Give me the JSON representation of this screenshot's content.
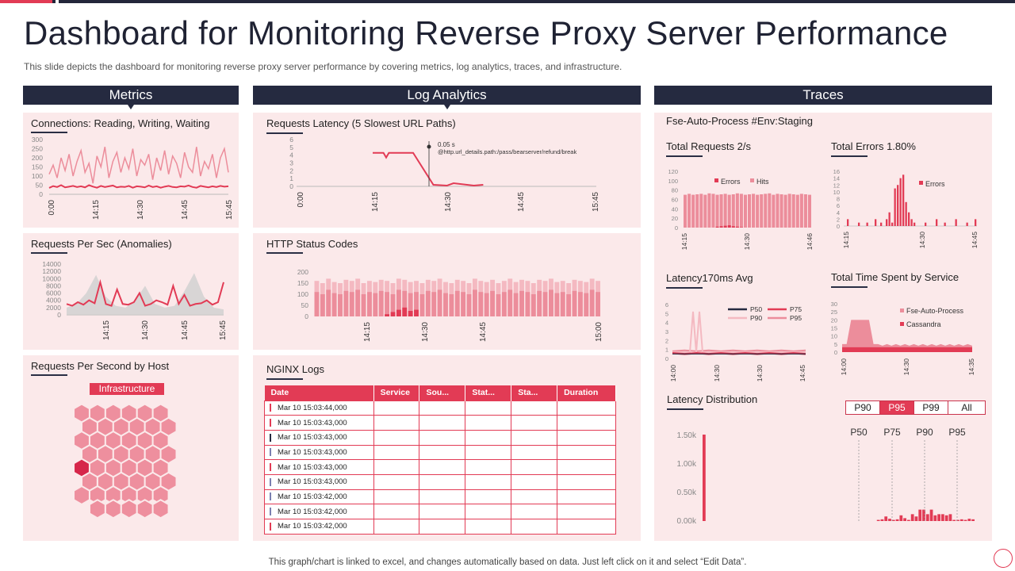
{
  "title": "Dashboard for Monitoring Reverse Proxy Server Performance",
  "subtitle": "This slide depicts the dashboard for monitoring reverse proxy server performance by covering metrics, log analytics, traces, and infrastructure.",
  "footer": "This graph/chart is linked to excel, and changes automatically based on data. Just left click on it and select “Edit Data”.",
  "colors": {
    "accent": "#e23b55",
    "pink_light": "#ec8d9b",
    "pink_pale": "#f4b9c1",
    "navy": "#252a40",
    "panel": "#fbe9ea",
    "gray": "#cfcfcf"
  },
  "sections": {
    "metrics": "Metrics",
    "log_analytics": "Log Analytics",
    "traces": "Traces"
  },
  "panels": {
    "connections": "Connections: Reading, Writing, Waiting",
    "rps_anomalies": "Requests Per Sec (Anomalies)",
    "rps_host": "Requests Per Second by Host",
    "latency_slowest": "Requests Latency (5 Slowest URL Paths)",
    "http_status": "HTTP Status Codes",
    "nginx_logs": "NGINX Logs",
    "fse_process": "Fse-Auto-Process #Env:Staging",
    "total_requests": "Total Requests 2/s",
    "total_errors": "Total Errors 1.80%",
    "latency_avg": "Latency170ms Avg",
    "time_by_service": "Total Time Spent by Service",
    "latency_dist": "Latency Distribution"
  },
  "infrastructure_label": "Infrastructure",
  "latency_tabs": [
    "P90",
    "P95",
    "P99",
    "All"
  ],
  "latency_tabs_active": "P95",
  "nginx_table": {
    "headers": [
      "Date",
      "Service",
      "Sou...",
      "Stat...",
      "Sta...",
      "Duration"
    ],
    "rows": [
      {
        "date": "Mar 10 15:03:44,000",
        "marker": "#e23b55"
      },
      {
        "date": "Mar 10 15:03:43,000",
        "marker": "#e23b55"
      },
      {
        "date": "Mar 10 15:03:43,000",
        "marker": "#252a40"
      },
      {
        "date": "Mar 10 15:03:43,000",
        "marker": "#7a7fb0"
      },
      {
        "date": "Mar 10 15:03:43,000",
        "marker": "#e23b55"
      },
      {
        "date": "Mar 10 15:03:43,000",
        "marker": "#7a7fb0"
      },
      {
        "date": "Mar 10 15:03:42,000",
        "marker": "#7a7fb0"
      },
      {
        "date": "Mar 10 15:03:42,000",
        "marker": "#7a7fb0"
      },
      {
        "date": "Mar 10 15:03:42,000",
        "marker": "#e23b55"
      }
    ]
  },
  "chart_data": [
    {
      "id": "connections",
      "type": "line",
      "x_ticks": [
        "0:00",
        "14:15",
        "14:30",
        "14:45",
        "15:45"
      ],
      "y_ticks": [
        "300",
        "250",
        "200",
        "150",
        "100",
        "50",
        "0"
      ],
      "ylim": [
        0,
        300
      ],
      "series": [
        {
          "values": [
            110,
            160,
            90,
            200,
            130,
            220,
            100,
            180,
            240,
            120,
            170,
            60,
            210,
            150,
            260,
            90,
            180,
            230,
            120,
            200,
            140,
            250,
            100,
            190,
            160,
            220,
            80,
            200,
            130,
            240,
            110,
            210,
            170,
            90,
            230,
            150,
            120,
            260,
            100,
            180,
            140,
            220,
            90,
            200,
            250,
            120
          ]
        },
        {
          "values": [
            35,
            45,
            40,
            50,
            38,
            42,
            46,
            40,
            44,
            38,
            50,
            42,
            36,
            46,
            40,
            44,
            48,
            38,
            42,
            40,
            46,
            36,
            44,
            42,
            38,
            48,
            40,
            44,
            36,
            42,
            46,
            40,
            38,
            44,
            42,
            48,
            40,
            36,
            46,
            42,
            38,
            44,
            40,
            46,
            42,
            44
          ]
        }
      ]
    },
    {
      "id": "rps_anomalies",
      "type": "line",
      "x_ticks": [
        "14:15",
        "14:30",
        "14:45",
        "15:45"
      ],
      "y_ticks": [
        "14000",
        "12000",
        "10000",
        "8000",
        "6000",
        "4000",
        "2000",
        "0"
      ],
      "ylim": [
        0,
        14000
      ],
      "band": [
        2000,
        3000,
        6000,
        11000,
        5000,
        2500,
        2000,
        4000,
        8000,
        3000,
        2000,
        2500,
        6500,
        11500,
        5000,
        2000,
        1500
      ],
      "series": [
        {
          "values": [
            3000,
            2500,
            3500,
            2800,
            4000,
            3200,
            9000,
            3000,
            2500,
            7000,
            3000,
            2800,
            3500,
            6000,
            2500,
            3000,
            4000,
            3500,
            2800,
            8000,
            3000,
            5500,
            2500,
            3000,
            3200,
            4000,
            2800,
            3500,
            9000
          ]
        }
      ]
    },
    {
      "id": "latency_slowest",
      "type": "line",
      "x_ticks": [
        "0:00",
        "14:15",
        "14:30",
        "14:45",
        "15:45"
      ],
      "y_ticks": [
        "6",
        "5",
        "4",
        "3",
        "2",
        "1",
        "0"
      ],
      "ylim": [
        0,
        6
      ],
      "annotation": {
        "value": "0.05 s",
        "path": "@http.url_details.path:/pass/bearserver/refund/break"
      },
      "series": [
        {
          "points": [
            [
              0.0,
              4.3
            ],
            [
              0.08,
              4.3
            ],
            [
              0.1,
              3.7
            ],
            [
              0.12,
              4.3
            ],
            [
              0.3,
              4.3
            ],
            [
              0.45,
              0.2
            ],
            [
              0.55,
              0.1
            ],
            [
              0.6,
              0.4
            ],
            [
              0.75,
              0.1
            ],
            [
              0.82,
              0.2
            ]
          ]
        }
      ]
    },
    {
      "id": "http_status",
      "type": "bar",
      "x_ticks": [
        "14:15",
        "14:30",
        "14:45",
        "15:00"
      ],
      "y_ticks": [
        "200",
        "150",
        "100",
        "50",
        "0"
      ],
      "ylim": [
        0,
        200
      ],
      "series": [
        {
          "name": "",
          "values": [
            160,
            150,
            170,
            155,
            150,
            165,
            160,
            170,
            150,
            160,
            155,
            165,
            160,
            150,
            170,
            165,
            155,
            160,
            150,
            165,
            160,
            170,
            155,
            150,
            165,
            160,
            150,
            170,
            160,
            155,
            165,
            150,
            160,
            170,
            155,
            165,
            160,
            150,
            165,
            160,
            170,
            155,
            160,
            150,
            165,
            160,
            155,
            170,
            160
          ]
        },
        {
          "name": "",
          "values": [
            110,
            100,
            120,
            105,
            100,
            115,
            110,
            120,
            100,
            110,
            105,
            115,
            110,
            100,
            120,
            115,
            105,
            110,
            100,
            115,
            110,
            120,
            105,
            100,
            115,
            110,
            100,
            120,
            110,
            105,
            115,
            100,
            110,
            120,
            105,
            115,
            110,
            100,
            115,
            110,
            120,
            105,
            110,
            100,
            115,
            110,
            105,
            120,
            110
          ]
        },
        {
          "name": "",
          "values": [
            0,
            0,
            0,
            0,
            0,
            0,
            0,
            0,
            0,
            0,
            0,
            0,
            10,
            20,
            30,
            40,
            25,
            30,
            0,
            0,
            0,
            0,
            0,
            0,
            0,
            0,
            0,
            0,
            0,
            0,
            0,
            0,
            0,
            0,
            0,
            0,
            0,
            0,
            0,
            0,
            0,
            0,
            0,
            0,
            0,
            0,
            0,
            0,
            0
          ]
        }
      ]
    },
    {
      "id": "total_requests",
      "type": "bar",
      "x_ticks": [
        "14:15",
        "14:30",
        "14:46"
      ],
      "y_ticks": [
        "120",
        "100",
        "80",
        "60",
        "40",
        "20",
        "0"
      ],
      "ylim": [
        0,
        120
      ],
      "legend": [
        "Errors",
        "Hits"
      ],
      "series": [
        {
          "name": "Hits",
          "values": [
            70,
            72,
            70,
            71,
            72,
            70,
            73,
            72,
            70,
            71,
            72,
            70,
            71,
            73,
            72,
            70,
            71,
            72,
            70,
            71,
            72,
            73,
            70,
            72,
            71,
            70,
            72,
            71,
            70,
            72,
            71,
            70
          ]
        },
        {
          "name": "Errors",
          "values": [
            0,
            0,
            0,
            0,
            0,
            0,
            0,
            0,
            2,
            3,
            4,
            5,
            3,
            2,
            1,
            0,
            0,
            0,
            0,
            0,
            0,
            0,
            0,
            0,
            0,
            0,
            0,
            0,
            0,
            0,
            0,
            0
          ]
        }
      ]
    },
    {
      "id": "total_errors",
      "type": "bar",
      "x_ticks": [
        "14:15",
        "14:30",
        "14:45"
      ],
      "y_ticks": [
        "16",
        "14",
        "12",
        "10",
        "8",
        "6",
        "4",
        "2",
        "0"
      ],
      "ylim": [
        0,
        16
      ],
      "legend": [
        "Errors"
      ],
      "series": [
        {
          "name": "Errors",
          "values": [
            0,
            2,
            0,
            0,
            0,
            1,
            0,
            0,
            1,
            0,
            0,
            2,
            0,
            1,
            0,
            2,
            4,
            1,
            11,
            12,
            14,
            15,
            7,
            4,
            2,
            1,
            0,
            0,
            0,
            1,
            0,
            0,
            0,
            2,
            0,
            0,
            1,
            0,
            0,
            0,
            2,
            0,
            0,
            0,
            1,
            0,
            0,
            2
          ]
        }
      ]
    },
    {
      "id": "latency_avg",
      "type": "line",
      "x_ticks": [
        "14:00",
        "14:30",
        "14:30",
        "14:45"
      ],
      "y_ticks": [
        "6",
        "5",
        "4",
        "3",
        "2",
        "1",
        "0"
      ],
      "ylim": [
        0,
        6
      ],
      "legend": [
        "P50",
        "P75",
        "P90",
        "P95"
      ],
      "series": [
        {
          "name": "P50",
          "values": [
            0.5,
            0.5,
            0.5,
            0.5,
            0.5,
            0.5,
            0.5,
            0.5,
            0.5,
            0.5,
            0.5,
            0.5
          ]
        },
        {
          "name": "P75",
          "values": [
            0.6,
            0.5,
            0.6,
            0.5,
            0.6,
            0.5,
            0.6,
            0.5,
            0.6,
            0.5,
            0.6,
            0.5
          ]
        },
        {
          "name": "P90",
          "values": [
            0.7,
            0.8,
            4.5,
            0.8,
            4.5,
            0.7,
            0.8,
            0.7,
            0.8,
            0.7,
            0.8,
            0.7
          ]
        },
        {
          "name": "P95",
          "values": [
            0.8,
            0.9,
            0.8,
            0.9,
            0.8,
            0.9,
            0.8,
            0.9,
            0.8,
            0.9,
            0.8,
            0.9
          ]
        }
      ]
    },
    {
      "id": "time_by_service",
      "type": "area",
      "x_ticks": [
        "14:00",
        "14:30",
        "14:35"
      ],
      "y_ticks": [
        "30",
        "25",
        "20",
        "15",
        "10",
        "5",
        "0"
      ],
      "ylim": [
        0,
        30
      ],
      "legend": [
        "Fse-Auto-Process",
        "Cassandra"
      ],
      "series": [
        {
          "name": "Fse-Auto-Process",
          "values": [
            5,
            5,
            20,
            20,
            20,
            20,
            20,
            5,
            5,
            4,
            5,
            4,
            5,
            4,
            5,
            4,
            5,
            4,
            5,
            4,
            5,
            4,
            5,
            4,
            5,
            4,
            5,
            4,
            5,
            4
          ]
        },
        {
          "name": "Cassandra",
          "values": [
            3,
            3,
            3,
            3,
            3,
            3,
            3,
            3,
            3,
            3,
            3,
            3,
            3,
            3,
            3,
            3,
            3,
            3,
            3,
            3,
            3,
            3,
            3,
            3,
            3,
            3,
            3,
            3,
            3,
            3
          ]
        }
      ]
    },
    {
      "id": "latency_dist",
      "type": "bar",
      "y_ticks": [
        "1.50k",
        "1.00k",
        "0.50k",
        "0.00k"
      ],
      "ylim": [
        0,
        1.5
      ],
      "percentile_labels": [
        "P50",
        "P75",
        "P90",
        "P95"
      ],
      "series": [
        {
          "values": [
            1.55,
            0,
            0,
            0,
            0,
            0,
            0,
            0,
            0,
            0,
            0,
            0,
            0,
            0,
            0,
            0,
            0,
            0,
            0,
            0,
            0,
            0,
            0,
            0,
            0,
            0,
            0,
            0,
            0,
            0,
            0,
            0,
            0,
            0,
            0,
            0,
            0,
            0,
            0,
            0,
            0,
            0,
            0,
            0,
            0,
            0,
            0.02,
            0.03,
            0.08,
            0.04,
            0.02,
            0.03,
            0.1,
            0.05,
            0.02,
            0.12,
            0.08,
            0.2,
            0.2,
            0.12,
            0.2,
            0.1,
            0.12,
            0.12,
            0.1,
            0.12,
            0.02,
            0.02,
            0.03,
            0.02,
            0.04,
            0.03
          ]
        }
      ]
    }
  ]
}
